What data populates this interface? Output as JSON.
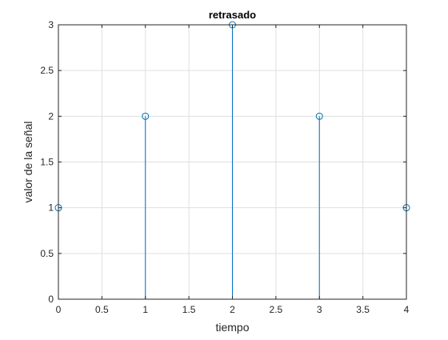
{
  "chart_data": {
    "type": "stem",
    "title": "retrasado",
    "xlabel": "tiempo",
    "ylabel": "valor de la señal",
    "xlim": [
      0,
      4
    ],
    "ylim": [
      0,
      3
    ],
    "x_ticks": [
      0,
      0.5,
      1,
      1.5,
      2,
      2.5,
      3,
      3.5,
      4
    ],
    "x_tick_labels": [
      "0",
      "0.5",
      "1",
      "1.5",
      "2",
      "2.5",
      "3",
      "3.5",
      "4"
    ],
    "y_ticks": [
      0,
      0.5,
      1,
      1.5,
      2,
      2.5,
      3
    ],
    "y_tick_labels": [
      "0",
      "0.5",
      "1",
      "1.5",
      "2",
      "2.5",
      "3"
    ],
    "grid": true,
    "series": [
      {
        "x": [
          0,
          1,
          2,
          3,
          4
        ],
        "values": [
          1,
          2,
          3,
          2,
          1
        ],
        "color": "#0072BD",
        "marker": "circle"
      }
    ]
  }
}
